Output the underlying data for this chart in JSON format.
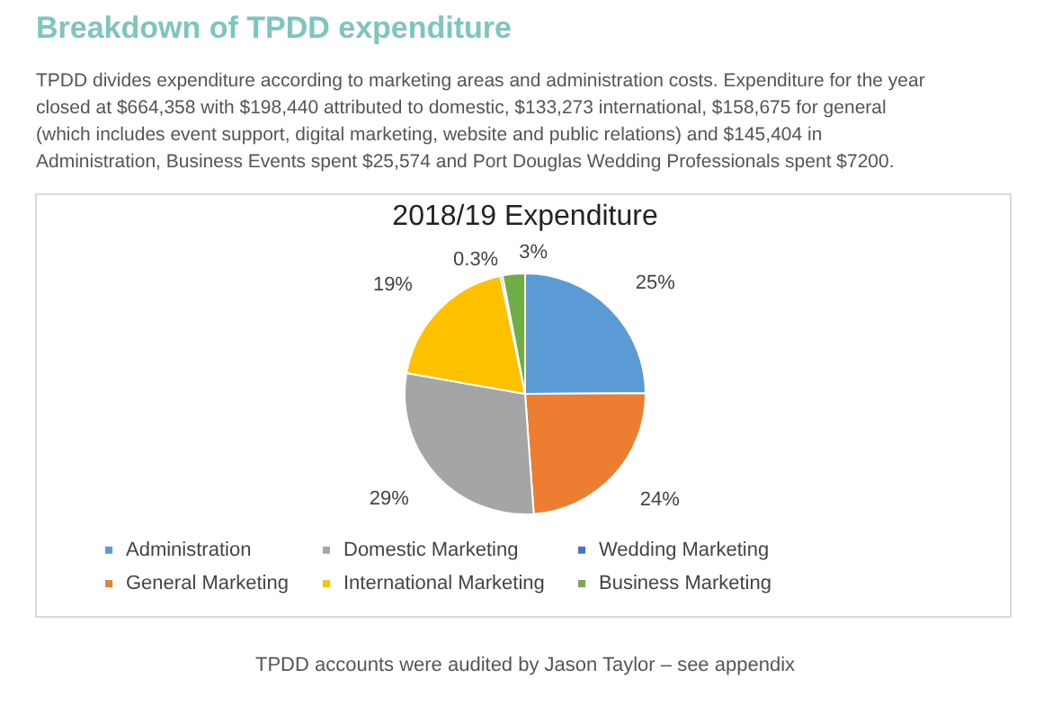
{
  "chart_data": {
    "type": "pie",
    "title": "2018/19 Expenditure",
    "annotations": [
      "Breakdown of TPDD expenditure",
      "TPDD divides expenditure according to marketing areas and administration costs. Expenditure for the year closed at $664,358 with $198,440 attributed to domestic, $133,273 international, $158,675 for general (which includes event support, digital marketing, website and public relations) and $145,404 in Administration, Business Events spent $25,574 and Port Douglas Wedding Professionals spent $7200.",
      "TPDD accounts were audited by Jason Taylor – see appendix"
    ],
    "categories": [
      "Administration",
      "General Marketing",
      "Domestic Marketing",
      "International Marketing",
      "Wedding Marketing",
      "Business Marketing"
    ],
    "values": [
      25,
      24,
      29,
      19,
      0.3,
      3
    ],
    "value_labels": [
      "25%",
      "24%",
      "29%",
      "19%",
      "0.3%",
      "3%"
    ],
    "colors": [
      "#5b9bd5",
      "#ed7d31",
      "#a5a5a5",
      "#ffc000",
      "#4472c4",
      "#70ad47"
    ],
    "legend": "bottom"
  }
}
